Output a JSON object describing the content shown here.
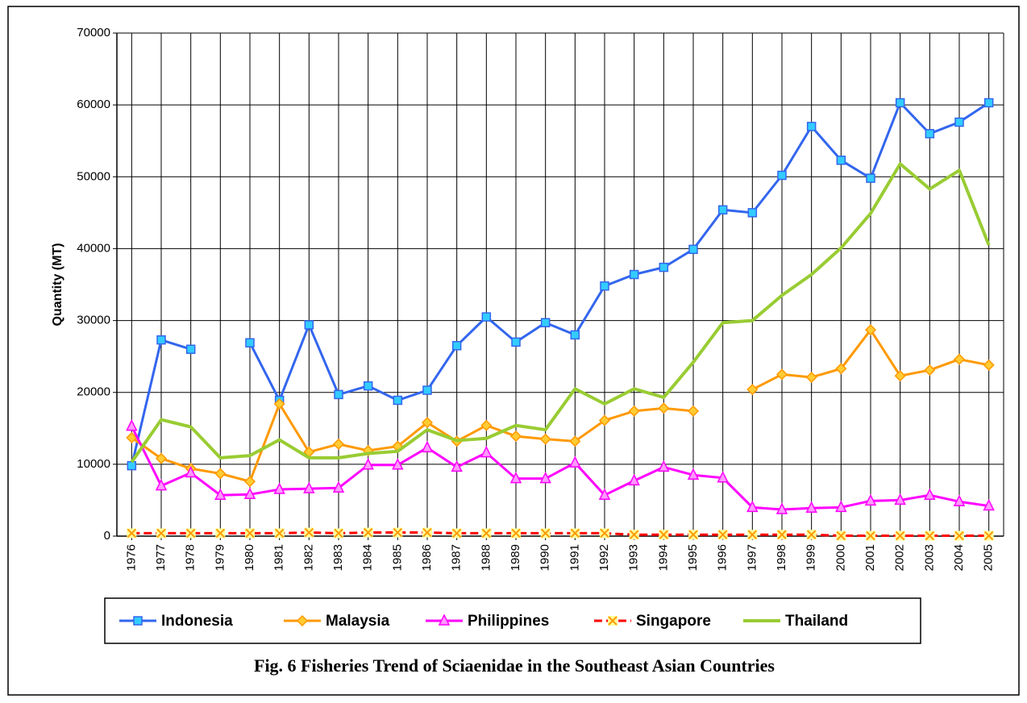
{
  "chart_data": {
    "type": "line",
    "caption": "Fig. 6 Fisheries Trend of Sciaenidae in the Southeast Asian Countries",
    "ylabel": "Quantity (MT)",
    "categories": [
      "1976",
      "1977",
      "1978",
      "1979",
      "1980",
      "1981",
      "1982",
      "1983",
      "1984",
      "1985",
      "1986",
      "1987",
      "1988",
      "1989",
      "1990",
      "1991",
      "1992",
      "1993",
      "1994",
      "1995",
      "1996",
      "1997",
      "1998",
      "1999",
      "2000",
      "2001",
      "2002",
      "2003",
      "2004",
      "2005"
    ],
    "ylim": [
      0,
      70000
    ],
    "yticks": [
      0,
      10000,
      20000,
      30000,
      40000,
      50000,
      60000,
      70000
    ],
    "grid": true,
    "legend": "bottom",
    "series": [
      {
        "name": "Indonesia",
        "color": "#3366ee",
        "marker": "square",
        "values": [
          9800,
          27300,
          26000,
          null,
          26900,
          18900,
          29400,
          19700,
          20900,
          18900,
          20300,
          26500,
          30500,
          27000,
          29700,
          28000,
          34800,
          36400,
          37400,
          39900,
          45400,
          45000,
          50200,
          57000,
          52300,
          49800,
          60300,
          56000,
          57600,
          60300
        ]
      },
      {
        "name": "Malaysia",
        "color": "#ff9900",
        "marker": "diamond",
        "values": [
          13700,
          10800,
          9400,
          8700,
          7600,
          18400,
          11700,
          12800,
          11900,
          12500,
          15800,
          13200,
          15400,
          13900,
          13500,
          13200,
          16100,
          17400,
          17800,
          17400,
          null,
          20400,
          22500,
          22100,
          23300,
          28700,
          22300,
          23100,
          24600,
          23800
        ]
      },
      {
        "name": "Philippines",
        "color": "#ff00ff",
        "marker": "triangle",
        "values": [
          15300,
          7000,
          8800,
          5700,
          5800,
          6500,
          6600,
          6700,
          9900,
          9900,
          12300,
          9600,
          11600,
          8000,
          8000,
          10200,
          5700,
          7700,
          9600,
          8500,
          8100,
          4000,
          3700,
          3900,
          4000,
          4900,
          5000,
          5700,
          4800,
          4200
        ]
      },
      {
        "name": "Singapore",
        "color": "#ff0000",
        "marker": "x",
        "values": [
          400,
          400,
          400,
          400,
          400,
          400,
          500,
          400,
          500,
          500,
          500,
          400,
          400,
          400,
          400,
          400,
          400,
          200,
          200,
          200,
          200,
          200,
          200,
          200,
          50,
          50,
          50,
          50,
          50,
          50
        ]
      },
      {
        "name": "Thailand",
        "color": "#99cc33",
        "marker": "none",
        "values": [
          10300,
          16200,
          15200,
          10900,
          11200,
          13400,
          10900,
          10900,
          11500,
          11800,
          14800,
          13300,
          13600,
          15400,
          14800,
          20500,
          18400,
          20500,
          19300,
          24200,
          29700,
          30000,
          33500,
          36400,
          40100,
          44900,
          51800,
          48300,
          50900,
          40500
        ]
      }
    ]
  }
}
